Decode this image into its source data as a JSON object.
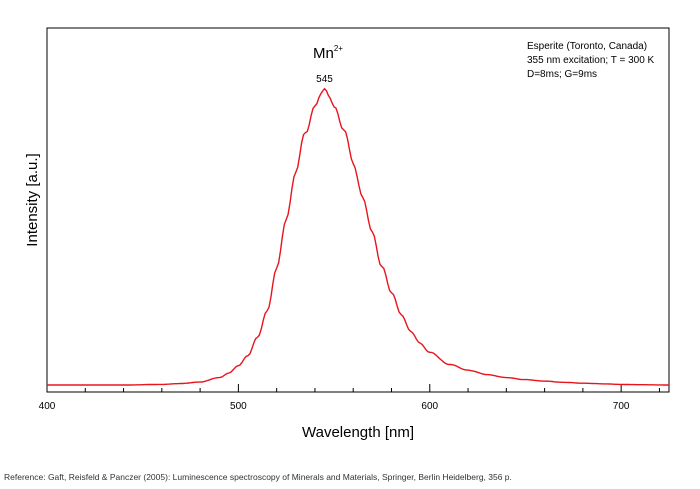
{
  "chart_data": {
    "type": "line",
    "xlabel": "Wavelength [nm]",
    "ylabel": "Intensity [a.u.]",
    "xlim": [
      400,
      725
    ],
    "ylim": [
      0,
      1.05
    ],
    "x_ticks": [
      400,
      500,
      600,
      700
    ],
    "y_ticks_labeled": false,
    "grid": false,
    "series": [
      {
        "color": "#e8141c",
        "x": [
          400,
          420,
          440,
          460,
          470,
          480,
          490,
          495,
          500,
          505,
          510,
          515,
          520,
          525,
          530,
          535,
          540,
          543,
          545,
          548,
          550,
          555,
          560,
          565,
          570,
          575,
          580,
          585,
          590,
          595,
          600,
          610,
          620,
          630,
          640,
          650,
          660,
          670,
          680,
          690,
          700,
          710,
          725
        ],
        "y": [
          0.01,
          0.01,
          0.01,
          0.012,
          0.015,
          0.02,
          0.035,
          0.05,
          0.075,
          0.11,
          0.17,
          0.26,
          0.4,
          0.57,
          0.73,
          0.86,
          0.95,
          0.99,
          1.0,
          0.98,
          0.95,
          0.87,
          0.76,
          0.64,
          0.52,
          0.41,
          0.32,
          0.25,
          0.19,
          0.15,
          0.12,
          0.08,
          0.06,
          0.045,
          0.035,
          0.028,
          0.023,
          0.019,
          0.016,
          0.014,
          0.012,
          0.011,
          0.01
        ]
      }
    ],
    "annotations": {
      "ion_base": "Mn",
      "ion_sup": "2+",
      "peak_label": "545",
      "peak_x": 545,
      "info_lines": [
        "Esperite (Toronto, Canada)",
        "355 nm excitation; T = 300 K",
        "D=8ms; G=9ms"
      ]
    }
  },
  "reference": "Reference: Gaft, Reisfeld & Panczer (2005): Luminescence spectroscopy of Minerals and Materials, Springer, Berlin Heidelberg, 356 p."
}
